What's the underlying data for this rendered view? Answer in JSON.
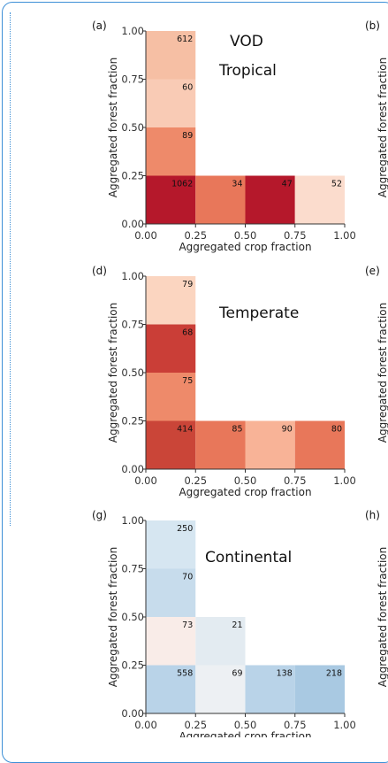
{
  "chart_data": [
    {
      "type": "heatmap",
      "panel_label": "(a)",
      "title": "VOD",
      "subtitle": "Tropical",
      "xlabel": "Aggregated crop fraction",
      "ylabel": "Aggregated forest fraction",
      "xlim": [
        0,
        1
      ],
      "ylim": [
        0,
        1
      ],
      "xticks": [
        "0.00",
        "0.25",
        "0.50",
        "0.75",
        "1.00"
      ],
      "yticks": [
        "0.00",
        "0.25",
        "0.50",
        "0.75",
        "1.00"
      ],
      "cells": [
        {
          "x": [
            0.0,
            0.25
          ],
          "y": [
            0.75,
            1.0
          ],
          "count": "612",
          "color": "#f6bfa4"
        },
        {
          "x": [
            0.0,
            0.25
          ],
          "y": [
            0.5,
            0.75
          ],
          "count": "60",
          "color": "#f9cbb5"
        },
        {
          "x": [
            0.0,
            0.25
          ],
          "y": [
            0.25,
            0.5
          ],
          "count": "89",
          "color": "#ee8a6a"
        },
        {
          "x": [
            0.0,
            0.25
          ],
          "y": [
            0.0,
            0.25
          ],
          "count": "1062",
          "color": "#b5182b"
        },
        {
          "x": [
            0.25,
            0.5
          ],
          "y": [
            0.0,
            0.25
          ],
          "count": "34",
          "color": "#e8775a"
        },
        {
          "x": [
            0.5,
            0.75
          ],
          "y": [
            0.0,
            0.25
          ],
          "count": "47",
          "color": "#b5182b"
        },
        {
          "x": [
            0.75,
            1.0
          ],
          "y": [
            0.0,
            0.25
          ],
          "count": "52",
          "color": "#fbdccd"
        }
      ]
    },
    {
      "type": "heatmap",
      "panel_label": "(d)",
      "title": "",
      "subtitle": "Temperate",
      "xlabel": "Aggregated crop fraction",
      "ylabel": "Aggregated forest fraction",
      "xlim": [
        0,
        1
      ],
      "ylim": [
        0,
        1
      ],
      "xticks": [
        "0.00",
        "0.25",
        "0.50",
        "0.75",
        "1.00"
      ],
      "yticks": [
        "0.00",
        "0.25",
        "0.50",
        "0.75",
        "1.00"
      ],
      "cells": [
        {
          "x": [
            0.0,
            0.25
          ],
          "y": [
            0.75,
            1.0
          ],
          "count": "79",
          "color": "#fbd5c0"
        },
        {
          "x": [
            0.0,
            0.25
          ],
          "y": [
            0.5,
            0.75
          ],
          "count": "68",
          "color": "#ca3e37"
        },
        {
          "x": [
            0.0,
            0.25
          ],
          "y": [
            0.25,
            0.5
          ],
          "count": "75",
          "color": "#ee8a6a"
        },
        {
          "x": [
            0.0,
            0.25
          ],
          "y": [
            0.0,
            0.25
          ],
          "count": "414",
          "color": "#ca4538"
        },
        {
          "x": [
            0.25,
            0.5
          ],
          "y": [
            0.0,
            0.25
          ],
          "count": "85",
          "color": "#e8775a"
        },
        {
          "x": [
            0.5,
            0.75
          ],
          "y": [
            0.0,
            0.25
          ],
          "count": "90",
          "color": "#f8b397"
        },
        {
          "x": [
            0.75,
            1.0
          ],
          "y": [
            0.0,
            0.25
          ],
          "count": "80",
          "color": "#e8775a"
        }
      ]
    },
    {
      "type": "heatmap",
      "panel_label": "(g)",
      "title": "",
      "subtitle": "Continental",
      "xlabel": "Aggregated crop fraction",
      "ylabel": "Aggregated forest fraction",
      "xlim": [
        0,
        1
      ],
      "ylim": [
        0,
        1
      ],
      "xticks": [
        "0.00",
        "0.25",
        "0.50",
        "0.75",
        "1.00"
      ],
      "yticks": [
        "0.00",
        "0.25",
        "0.50",
        "0.75",
        "1.00"
      ],
      "cells": [
        {
          "x": [
            0.0,
            0.25
          ],
          "y": [
            0.75,
            1.0
          ],
          "count": "250",
          "color": "#d6e6f1"
        },
        {
          "x": [
            0.0,
            0.25
          ],
          "y": [
            0.5,
            0.75
          ],
          "count": "70",
          "color": "#c7dcec"
        },
        {
          "x": [
            0.0,
            0.25
          ],
          "y": [
            0.25,
            0.5
          ],
          "count": "73",
          "color": "#f9ece8"
        },
        {
          "x": [
            0.25,
            0.5
          ],
          "y": [
            0.25,
            0.5
          ],
          "count": "21",
          "color": "#e3ebf1"
        },
        {
          "x": [
            0.0,
            0.25
          ],
          "y": [
            0.0,
            0.25
          ],
          "count": "558",
          "color": "#b9d3e8"
        },
        {
          "x": [
            0.25,
            0.5
          ],
          "y": [
            0.0,
            0.25
          ],
          "count": "69",
          "color": "#edf0f3"
        },
        {
          "x": [
            0.5,
            0.75
          ],
          "y": [
            0.0,
            0.25
          ],
          "count": "138",
          "color": "#b9d3e8"
        },
        {
          "x": [
            0.75,
            1.0
          ],
          "y": [
            0.0,
            0.25
          ],
          "count": "218",
          "color": "#a9c9e2"
        }
      ]
    }
  ],
  "right_panels": [
    {
      "label": "(b)",
      "ylabel": "Aggregated forest fraction"
    },
    {
      "label": "(e)",
      "ylabel": "Aggregated forest fraction"
    },
    {
      "label": "(h)",
      "ylabel": "Aggregated forest fraction"
    }
  ],
  "colors": {
    "frame": "#3d8fd6",
    "axis": "#333333"
  }
}
